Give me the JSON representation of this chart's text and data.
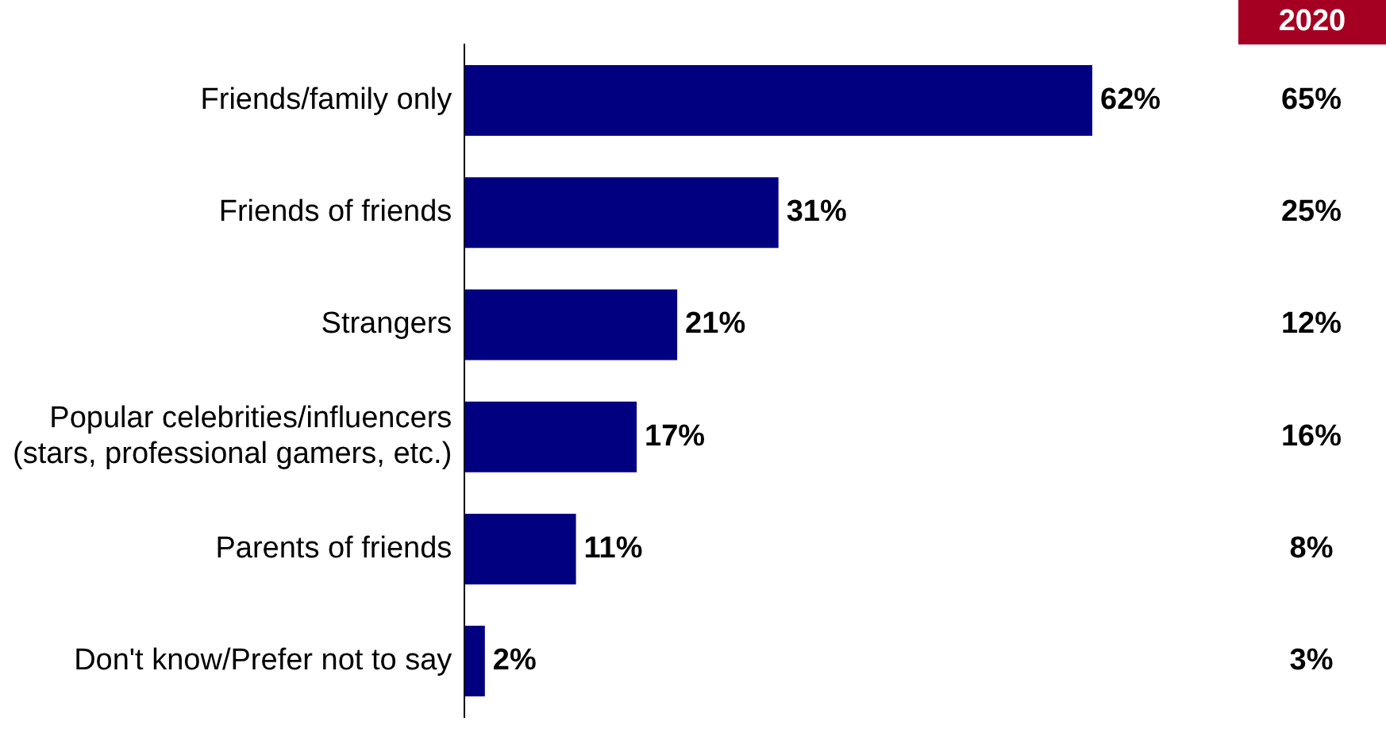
{
  "chart_data": {
    "type": "bar",
    "orientation": "horizontal",
    "categories": [
      "Friends/family only",
      "Friends of friends",
      "Strangers",
      "Popular celebrities/influencers (stars, professional gamers, etc.)",
      "Parents of friends",
      "Don't know/Prefer not to say"
    ],
    "values": [
      62,
      31,
      21,
      17,
      11,
      2
    ],
    "value_labels": [
      "62%",
      "31%",
      "21%",
      "17%",
      "11%",
      "2%"
    ],
    "color": "#000080",
    "grid": false,
    "legend": false,
    "tick_labels": "y",
    "annotations": [
      "2020",
      "65%",
      "25%",
      "12%",
      "16%",
      "8%",
      "3%"
    ]
  }
}
